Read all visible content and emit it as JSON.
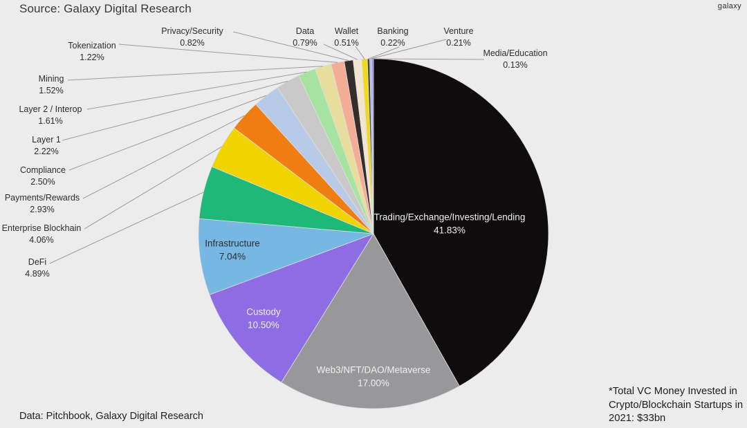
{
  "header": {
    "source": "Source: Galaxy Digital Research",
    "logo": "galaxy"
  },
  "footer": {
    "data_note": "Data: Pitchbook, Galaxy Digital Research",
    "annotation_lines": [
      "*Total VC Money Invested in",
      "Crypto/Blockchain Startups in",
      "2021: $33bn"
    ]
  },
  "chart_data": {
    "type": "pie",
    "title": "",
    "start_angle_deg": 0,
    "direction": "clockwise",
    "background": "#ececec",
    "legend": "none",
    "categories": [
      "Trading/Exchange/Investing/Lending",
      "Web3/NFT/DAO/Metaverse",
      "Custody",
      "Infrastructure",
      "DeFi",
      "Enterprise Blockhain",
      "Payments/Rewards",
      "Compliance",
      "Layer 1",
      "Layer 2 / Interop",
      "Mining",
      "Tokenization",
      "Privacy/Security",
      "Data",
      "Wallet",
      "Banking",
      "Venture",
      "Media/Education"
    ],
    "values": [
      41.83,
      17.0,
      10.5,
      7.04,
      4.89,
      4.06,
      2.93,
      2.5,
      2.22,
      1.61,
      1.52,
      1.22,
      0.82,
      0.79,
      0.51,
      0.22,
      0.21,
      0.13
    ],
    "pct_labels": [
      "41.83%",
      "17.00%",
      "10.50%",
      "7.04%",
      "4.89%",
      "4.06%",
      "2.93%",
      "2.50%",
      "2.22%",
      "1.61%",
      "1.52%",
      "1.22%",
      "0.82%",
      "0.79%",
      "0.51%",
      "0.22%",
      "0.21%",
      "0.13%"
    ],
    "colors": [
      "#0e0c0d",
      "#98989a",
      "#8d6ce4",
      "#76b7e4",
      "#1eb879",
      "#f0d400",
      "#ef7d12",
      "#b7cbe8",
      "#c9c9c9",
      "#a7e3a0",
      "#e7dd9d",
      "#f3ad97",
      "#332d2b",
      "#f0e5cf",
      "#f2d915",
      "#4a4543",
      "#a7b8ea",
      "#7a5fd2"
    ],
    "leader_line_color": "#9a9a9a",
    "slice_stroke_color": "#dedede"
  }
}
